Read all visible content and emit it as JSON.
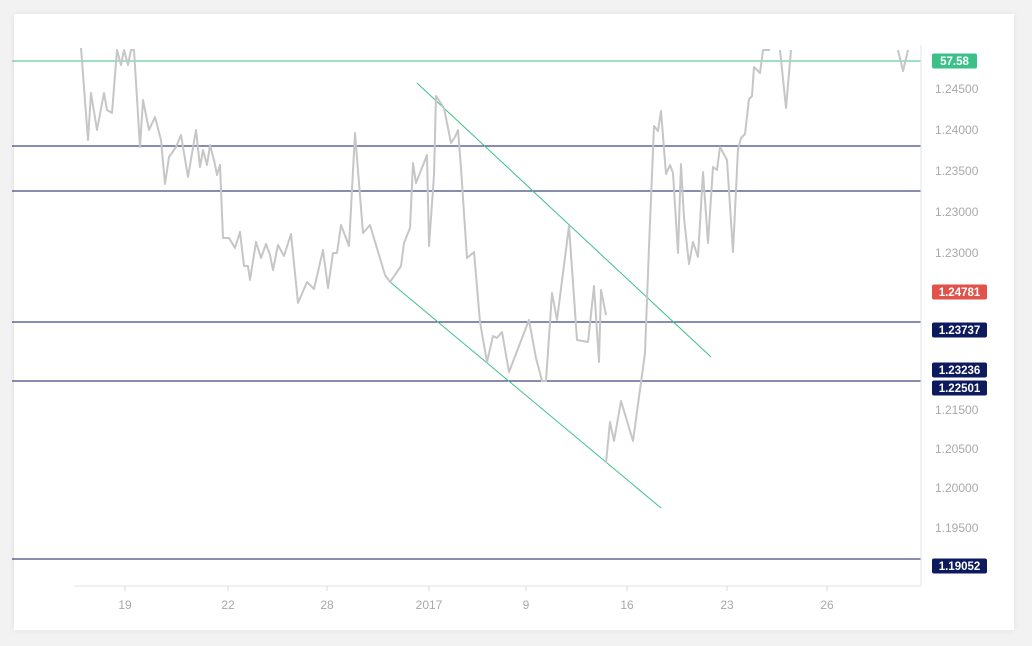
{
  "chart_data": {
    "type": "line",
    "x_ticks": [
      "19",
      "22",
      "28",
      "2017",
      "9",
      "16",
      "23",
      "26"
    ],
    "y_ticks": [
      "1.24500",
      "1.24000",
      "1.23500",
      "1.23000",
      "1.23000",
      "1.21500",
      "1.20500",
      "1.20000",
      "1.19500"
    ],
    "horizontal_levels": [
      {
        "label": "",
        "color": "#0d1b5e"
      },
      {
        "label": "",
        "color": "#0d1b5e"
      },
      {
        "label": "1.23737",
        "color": "#0d1b5e"
      },
      {
        "label": "1.22501",
        "color": "#0d1b5e"
      },
      {
        "label": "1.19052",
        "color": "#0d1b5e"
      }
    ],
    "price_levels": [
      "1.23737",
      "1.23236",
      "1.22501",
      "1.19052"
    ],
    "marker_labels": [
      {
        "label": "57.58",
        "color": "#3cc08a"
      },
      {
        "label": "1.24781",
        "color": "#e0524a"
      },
      {
        "label": "1.23236",
        "color": "#0d1b5e"
      }
    ],
    "series_color": "#c6c6c6",
    "trendline_color": "#3cc08a",
    "grid": false,
    "legend": "none",
    "title": "",
    "xlabel": "",
    "ylabel": ""
  }
}
